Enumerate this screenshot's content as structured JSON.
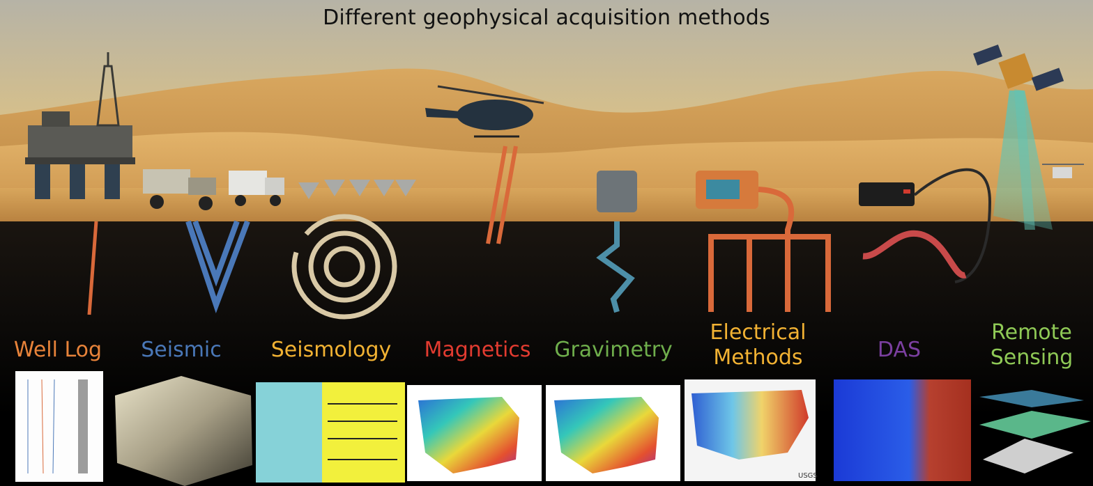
{
  "title": "Different geophysical acquisition methods",
  "methods": [
    {
      "label": "Well Log",
      "color": "#e8833a"
    },
    {
      "label": "Seismic",
      "color": "#4a78b8"
    },
    {
      "label": "Seismology",
      "color": "#f2b233"
    },
    {
      "label": "Magnetics",
      "color": "#e23b30"
    },
    {
      "label": "Gravimetry",
      "color": "#6fae4c"
    },
    {
      "label_line1": "Electrical",
      "label_line2": "Methods",
      "color": "#f2b233"
    },
    {
      "label": "DAS",
      "color": "#7b3fa0"
    },
    {
      "label_line1": "Remote",
      "label_line2": "Sensing",
      "color": "#8fc956"
    }
  ],
  "sensor_colors": {
    "orange": "#d9693a",
    "blue": "#4d8fa8",
    "seismic": "#4a78b8",
    "rings": "#d9c9a6",
    "das_red": "#c84a4a"
  },
  "map_legend_label": "USGS"
}
